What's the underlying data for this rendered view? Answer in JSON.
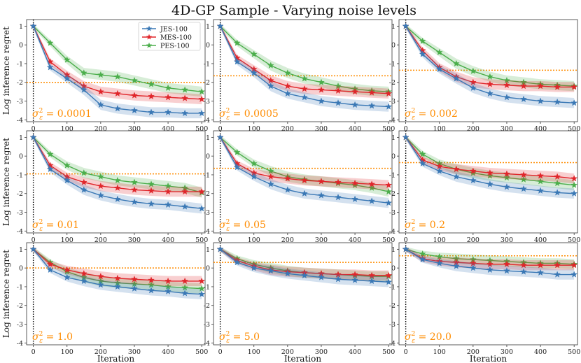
{
  "chart_data": {
    "type": "line",
    "title": "4D-GP Sample - Varying noise levels",
    "xlabel": "Iteration",
    "ylabel": "Log inference regret",
    "xlim": [
      -20,
      510
    ],
    "ylim": [
      -4.1,
      1.35
    ],
    "xticks": [
      0,
      100,
      200,
      300,
      400,
      500
    ],
    "yticks": [
      1,
      0,
      -1,
      -2,
      -3,
      -4
    ],
    "legend": {
      "position": "top-right-of-first-panel",
      "entries": [
        {
          "name": "JES-100",
          "color": "#3a78b5"
        },
        {
          "name": "MES-100",
          "color": "#e0262b"
        },
        {
          "name": "PES-100",
          "color": "#4bae4b"
        }
      ]
    },
    "vline_x": 0,
    "reference_color": "#ff8c00",
    "x": [
      0,
      50,
      100,
      150,
      200,
      250,
      300,
      350,
      400,
      450,
      500
    ],
    "panels": [
      {
        "noise_label": "0.0001",
        "reference": -2.0,
        "series": {
          "JES-100": [
            1.0,
            -1.2,
            -1.8,
            -2.4,
            -3.2,
            -3.4,
            -3.5,
            -3.6,
            -3.6,
            -3.65,
            -3.65
          ],
          "MES-100": [
            1.0,
            -0.9,
            -1.6,
            -2.2,
            -2.5,
            -2.6,
            -2.7,
            -2.75,
            -2.8,
            -2.85,
            -2.9
          ],
          "PES-100": [
            1.0,
            0.1,
            -0.8,
            -1.5,
            -1.6,
            -1.7,
            -1.9,
            -2.1,
            -2.3,
            -2.4,
            -2.5
          ]
        }
      },
      {
        "noise_label": "0.0005",
        "reference": -1.65,
        "series": {
          "JES-100": [
            1.0,
            -0.9,
            -1.5,
            -2.2,
            -2.6,
            -2.8,
            -3.0,
            -3.1,
            -3.2,
            -3.25,
            -3.3
          ],
          "MES-100": [
            1.0,
            -0.7,
            -1.3,
            -1.9,
            -2.2,
            -2.35,
            -2.4,
            -2.45,
            -2.5,
            -2.55,
            -2.6
          ],
          "PES-100": [
            1.0,
            0.1,
            -0.5,
            -1.1,
            -1.5,
            -1.8,
            -2.0,
            -2.2,
            -2.35,
            -2.45,
            -2.5
          ]
        }
      },
      {
        "noise_label": "0.002",
        "reference": -1.35,
        "series": {
          "JES-100": [
            1.0,
            -0.5,
            -1.3,
            -1.8,
            -2.3,
            -2.6,
            -2.8,
            -2.9,
            -3.0,
            -3.05,
            -3.1
          ],
          "MES-100": [
            1.0,
            -0.3,
            -1.2,
            -1.7,
            -2.0,
            -2.1,
            -2.15,
            -2.2,
            -2.2,
            -2.25,
            -2.25
          ],
          "PES-100": [
            1.0,
            0.2,
            -0.4,
            -1.0,
            -1.4,
            -1.7,
            -1.9,
            -2.0,
            -2.1,
            -2.15,
            -2.2
          ]
        }
      },
      {
        "noise_label": "0.01",
        "reference": -0.95,
        "series": {
          "JES-100": [
            1.0,
            -0.7,
            -1.3,
            -1.8,
            -2.1,
            -2.3,
            -2.45,
            -2.55,
            -2.6,
            -2.7,
            -2.8
          ],
          "MES-100": [
            1.0,
            -0.5,
            -1.1,
            -1.4,
            -1.6,
            -1.7,
            -1.8,
            -1.85,
            -1.9,
            -1.9,
            -1.9
          ],
          "PES-100": [
            1.0,
            0.1,
            -0.5,
            -0.9,
            -1.1,
            -1.3,
            -1.4,
            -1.5,
            -1.6,
            -1.7,
            -1.95
          ]
        }
      },
      {
        "noise_label": "0.05",
        "reference": -0.65,
        "series": {
          "JES-100": [
            1.0,
            -0.6,
            -1.1,
            -1.5,
            -1.8,
            -2.0,
            -2.1,
            -2.2,
            -2.3,
            -2.4,
            -2.5
          ],
          "MES-100": [
            1.0,
            -0.4,
            -0.9,
            -1.1,
            -1.2,
            -1.3,
            -1.35,
            -1.4,
            -1.45,
            -1.5,
            -1.55
          ],
          "PES-100": [
            1.0,
            0.2,
            -0.4,
            -0.8,
            -1.1,
            -1.25,
            -1.35,
            -1.45,
            -1.55,
            -1.7,
            -1.9
          ]
        }
      },
      {
        "noise_label": "0.2",
        "reference": -0.35,
        "series": {
          "JES-100": [
            1.0,
            -0.4,
            -0.8,
            -1.1,
            -1.3,
            -1.5,
            -1.65,
            -1.75,
            -1.85,
            -1.95,
            -2.0
          ],
          "MES-100": [
            1.0,
            -0.2,
            -0.55,
            -0.7,
            -0.8,
            -0.9,
            -0.95,
            -1.0,
            -1.05,
            -1.1,
            -1.2
          ],
          "PES-100": [
            1.0,
            0.1,
            -0.4,
            -0.7,
            -0.9,
            -1.05,
            -1.15,
            -1.25,
            -1.35,
            -1.45,
            -1.55
          ]
        }
      },
      {
        "noise_label": "1.0",
        "reference": 0.0,
        "series": {
          "JES-100": [
            1.0,
            -0.1,
            -0.5,
            -0.7,
            -0.9,
            -1.0,
            -1.1,
            -1.2,
            -1.25,
            -1.35,
            -1.4
          ],
          "MES-100": [
            1.0,
            0.2,
            -0.1,
            -0.3,
            -0.45,
            -0.55,
            -0.6,
            -0.65,
            -0.7,
            -0.7,
            -0.7
          ],
          "PES-100": [
            1.0,
            0.3,
            -0.2,
            -0.5,
            -0.7,
            -0.8,
            -0.85,
            -0.9,
            -1.0,
            -1.05,
            -1.1
          ]
        }
      },
      {
        "noise_label": "5.0",
        "reference": 0.3,
        "series": {
          "JES-100": [
            1.0,
            0.3,
            0.0,
            -0.15,
            -0.3,
            -0.4,
            -0.5,
            -0.6,
            -0.65,
            -0.7,
            -0.75
          ],
          "MES-100": [
            1.0,
            0.4,
            0.1,
            -0.1,
            -0.2,
            -0.25,
            -0.3,
            -0.35,
            -0.35,
            -0.4,
            -0.4
          ],
          "PES-100": [
            1.0,
            0.5,
            0.2,
            0.0,
            -0.15,
            -0.25,
            -0.3,
            -0.35,
            -0.4,
            -0.45,
            -0.45
          ]
        }
      },
      {
        "noise_label": "20.0",
        "reference": 0.65,
        "series": {
          "JES-100": [
            1.0,
            0.45,
            0.25,
            0.1,
            0.0,
            -0.1,
            -0.15,
            -0.2,
            -0.25,
            -0.35,
            -0.35
          ],
          "MES-100": [
            1.0,
            0.5,
            0.35,
            0.3,
            0.25,
            0.2,
            0.2,
            0.15,
            0.15,
            0.15,
            0.15
          ],
          "PES-100": [
            1.0,
            0.75,
            0.6,
            0.5,
            0.45,
            0.4,
            0.35,
            0.3,
            0.25,
            0.25,
            0.2
          ]
        }
      }
    ]
  }
}
